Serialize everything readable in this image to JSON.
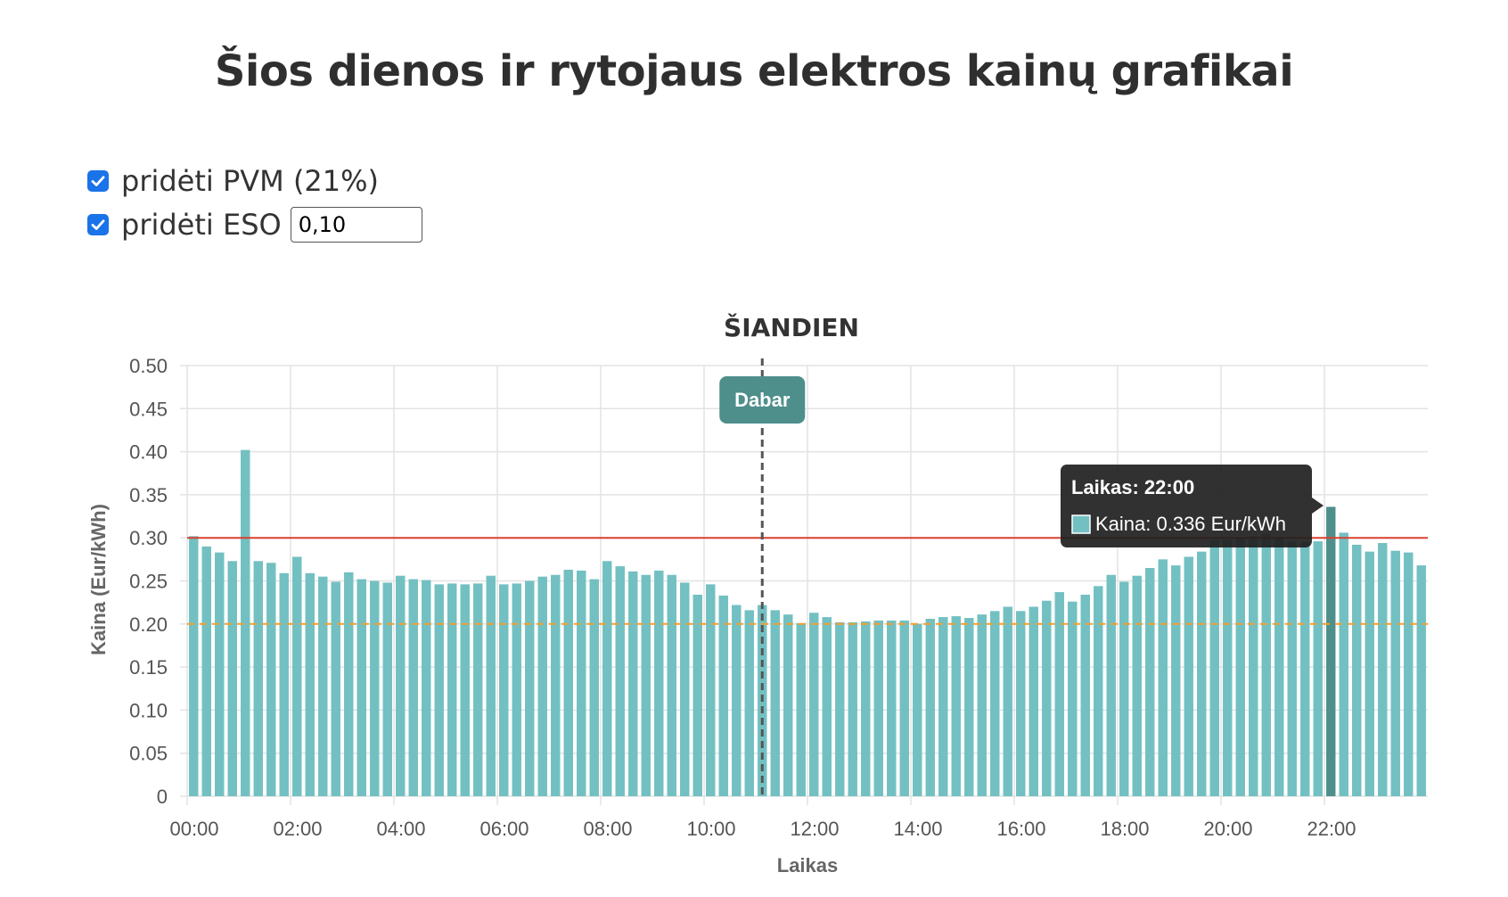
{
  "page": {
    "title": "Šios dienos ir rytojaus elektros kainų grafikai"
  },
  "options": {
    "pvm": {
      "label": "pridėti PVM (21%)",
      "checked": true
    },
    "eso": {
      "label": "pridėti ESO",
      "checked": true,
      "value": "0,10"
    }
  },
  "colors": {
    "bar": "#73c0c2",
    "bar_highlight": "#4e8f8c",
    "threshold_high": "#d9402f",
    "threshold_low": "#f0a030",
    "now_marker": "#4e8f8c",
    "checkbox": "#1a73e8"
  },
  "chart_data": {
    "type": "bar",
    "title": "ŠIANDIEN",
    "xlabel": "Laikas",
    "ylabel": "Kaina (Eur/kWh)",
    "ylim": [
      0,
      0.5
    ],
    "yticks": [
      "0",
      "0.05",
      "0.10",
      "0.15",
      "0.20",
      "0.25",
      "0.30",
      "0.35",
      "0.40",
      "0.45",
      "0.50"
    ],
    "xticks": [
      "00:00",
      "02:00",
      "04:00",
      "06:00",
      "08:00",
      "10:00",
      "12:00",
      "14:00",
      "16:00",
      "18:00",
      "20:00",
      "22:00"
    ],
    "interval": "15 min",
    "grid": true,
    "values": [
      0.302,
      0.29,
      0.283,
      0.273,
      0.402,
      0.273,
      0.271,
      0.259,
      0.278,
      0.259,
      0.255,
      0.249,
      0.26,
      0.252,
      0.25,
      0.248,
      0.256,
      0.252,
      0.251,
      0.246,
      0.247,
      0.246,
      0.247,
      0.256,
      0.246,
      0.247,
      0.25,
      0.255,
      0.257,
      0.263,
      0.262,
      0.252,
      0.273,
      0.267,
      0.261,
      0.257,
      0.262,
      0.257,
      0.248,
      0.234,
      0.246,
      0.233,
      0.222,
      0.216,
      0.222,
      0.216,
      0.211,
      0.201,
      0.213,
      0.208,
      0.202,
      0.202,
      0.203,
      0.204,
      0.204,
      0.204,
      0.2,
      0.206,
      0.208,
      0.209,
      0.207,
      0.211,
      0.215,
      0.22,
      0.215,
      0.22,
      0.227,
      0.237,
      0.226,
      0.234,
      0.244,
      0.257,
      0.249,
      0.256,
      0.265,
      0.275,
      0.268,
      0.278,
      0.284,
      0.298,
      0.298,
      0.3,
      0.302,
      0.305,
      0.3,
      0.296,
      0.295,
      0.296,
      0.336,
      0.306,
      0.292,
      0.284,
      0.294,
      0.285,
      0.283,
      0.268
    ],
    "highlight_index": 88,
    "reference_lines": [
      {
        "y": 0.3,
        "style": "solid"
      },
      {
        "y": 0.2,
        "style": "dashed"
      }
    ],
    "now_index": 44,
    "now_label": "Dabar",
    "tooltip": {
      "title": "Laikas: 22:00",
      "body": "Kaina: 0.336 Eur/kWh"
    }
  }
}
